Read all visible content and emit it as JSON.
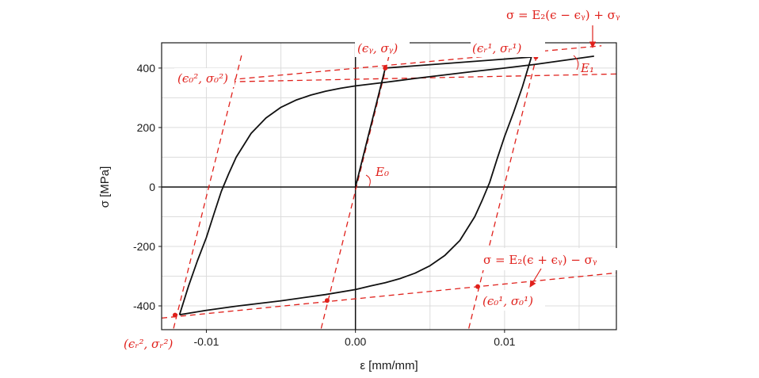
{
  "chart_data": {
    "type": "line",
    "title": "",
    "xlabel": "ε [mm/mm]",
    "ylabel": "σ [MPa]",
    "xlim": [
      -0.013,
      0.0175
    ],
    "ylim": [
      -480,
      485
    ],
    "x_ticks": [
      -0.01,
      0.0,
      0.01
    ],
    "x_tick_labels": [
      "-0.01",
      "0.00",
      "0.01"
    ],
    "y_ticks": [
      -400,
      -200,
      0,
      200,
      400
    ],
    "y_tick_labels": [
      "-400",
      "-200",
      "0",
      "200",
      "400"
    ],
    "grid": true,
    "colors": {
      "curve": "#111111",
      "annotation": "#e0201b",
      "grid": "#dcdcdc"
    },
    "series": [
      {
        "points": [
          [
            -0.0118,
            -430
          ],
          [
            -0.0112,
            -334
          ],
          [
            -0.0106,
            -248
          ],
          [
            -0.01,
            -170
          ],
          [
            -0.0095,
            -92
          ],
          [
            -0.009,
            -15
          ],
          [
            -0.0085,
            45
          ],
          [
            -0.008,
            100
          ],
          [
            -0.007,
            180
          ],
          [
            -0.006,
            232
          ],
          [
            -0.005,
            268
          ],
          [
            -0.004,
            292
          ],
          [
            -0.003,
            309
          ],
          [
            -0.002,
            322
          ],
          [
            -0.001,
            332
          ],
          [
            0.0,
            340
          ],
          [
            0.002,
            352
          ],
          [
            0.004,
            365
          ],
          [
            0.006,
            377
          ],
          [
            0.008,
            389
          ],
          [
            0.01,
            400
          ],
          [
            0.012,
            412
          ],
          [
            0.014,
            426
          ],
          [
            0.016,
            440
          ]
        ]
      },
      {
        "points": [
          [
            0.0,
            0
          ],
          [
            0.002,
            400
          ],
          [
            0.0118,
            437
          ],
          [
            0.0112,
            337
          ],
          [
            0.0106,
            250
          ],
          [
            0.01,
            170
          ],
          [
            0.0095,
            94
          ],
          [
            0.009,
            15
          ],
          [
            0.0085,
            -45
          ],
          [
            0.008,
            -100
          ],
          [
            0.007,
            -180
          ],
          [
            0.006,
            -230
          ],
          [
            0.005,
            -265
          ],
          [
            0.004,
            -290
          ],
          [
            0.003,
            -308
          ],
          [
            0.002,
            -322
          ],
          [
            0.001,
            -333
          ],
          [
            0.0,
            -345
          ],
          [
            -0.002,
            -362
          ],
          [
            -0.005,
            -383
          ],
          [
            -0.008,
            -401
          ],
          [
            -0.01,
            -415
          ],
          [
            -0.0118,
            -430
          ]
        ]
      }
    ],
    "dashed_lines": [
      {
        "p1": [
          -0.013,
          -441
        ],
        "p2": [
          0.0175,
          -289
        ]
      },
      {
        "p1": [
          -0.0103,
          352
        ],
        "p2": [
          0.0165,
          475
        ]
      },
      {
        "p1": [
          -0.0103,
          352
        ],
        "p2": [
          0.0175,
          380
        ]
      },
      {
        "p1": [
          -0.0122,
          -476
        ],
        "p2": [
          -0.0076,
          451
        ]
      },
      {
        "p1": [
          -0.0023,
          -476
        ],
        "p2": [
          0.0023,
          451
        ]
      },
      {
        "p1": [
          0.0076,
          -476
        ],
        "p2": [
          0.0122,
          451
        ]
      }
    ],
    "points": [
      {
        "x": 0.002,
        "y": 400
      },
      {
        "x": 0.0121,
        "y": 437
      },
      {
        "x": -0.0082,
        "y": 355
      },
      {
        "x": -0.0121,
        "y": -431
      },
      {
        "x": -0.0019,
        "y": -382
      },
      {
        "x": 0.0082,
        "y": -335
      }
    ],
    "annotations": {
      "upper_formula": "σ = E₂(ϵ − ϵᵧ) + σᵧ",
      "lower_formula": "σ = E₂(ϵ + ϵᵧ) − σᵧ",
      "yield_point": "(ϵᵧ, σᵧ)",
      "reversal_point_1": "(ϵᵣ¹, σᵣ¹)",
      "reversal_point_2": "(ϵᵣ², σᵣ²)",
      "origin_point_1": "(ϵ₀¹, σ₀¹)",
      "origin_point_2": "(ϵ₀², σ₀²)",
      "e0_label": "E₀",
      "e1_label": "E₁"
    }
  }
}
